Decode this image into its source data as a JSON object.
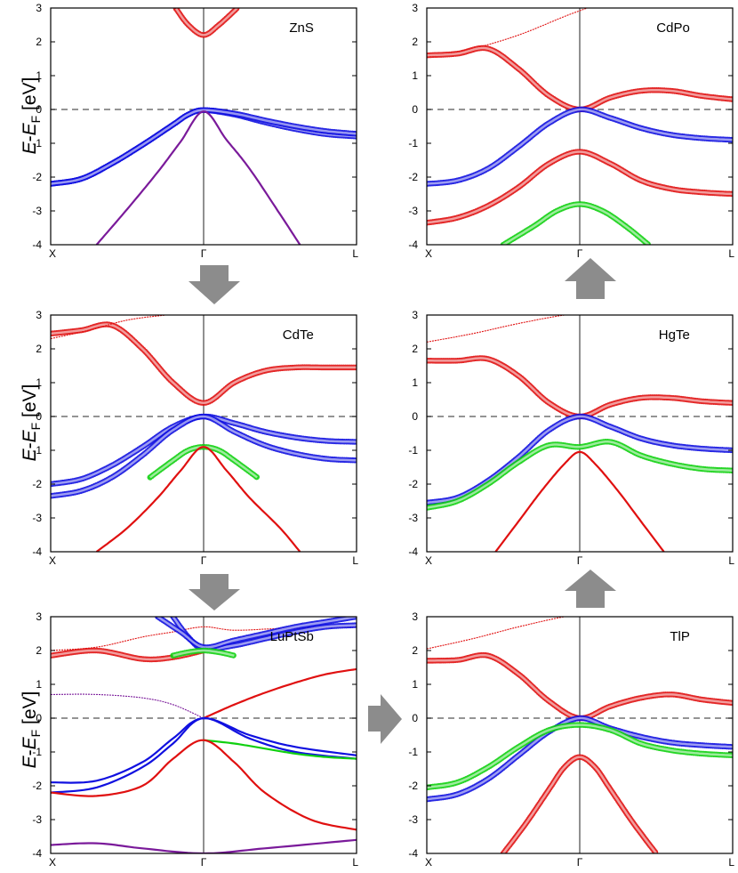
{
  "figure": {
    "ylabel": {
      "main": "E",
      "dash": "-",
      "e2": "E",
      "sub": "F",
      "unit": " [eV]"
    },
    "arrow_color": "#8c8c8c",
    "colors": {
      "red": "#e01010",
      "blue": "#1010e0",
      "green": "#10d010",
      "purple": "#7a1a9a",
      "fermi": "#555555",
      "axis": "#000000"
    }
  },
  "chart_data": [
    {
      "type": "line",
      "title": "ZnS",
      "x_ticks": [
        "X",
        "Γ",
        "L"
      ],
      "ylim": [
        -4,
        3
      ],
      "y_ticks": [
        -4,
        -3,
        -2,
        -1,
        0,
        1,
        2,
        3
      ],
      "fermi_level": 0,
      "series": [
        {
          "color": "red",
          "style": "circles",
          "x": [
            0.82,
            0.9,
            1.0,
            1.1,
            1.22
          ],
          "y": [
            2.98,
            2.5,
            2.2,
            2.5,
            3.0
          ]
        },
        {
          "color": "blue",
          "style": "circles",
          "x": [
            0,
            0.2,
            0.4,
            0.6,
            0.8,
            0.9,
            1.0,
            1.2,
            1.4,
            1.6,
            1.8,
            2.0
          ],
          "y": [
            -2.2,
            -2.05,
            -1.6,
            -1.05,
            -0.45,
            -0.15,
            -0.02,
            -0.15,
            -0.38,
            -0.58,
            -0.73,
            -0.8
          ]
        },
        {
          "color": "blue",
          "style": "circles",
          "x": [
            0,
            0.2,
            0.4,
            0.6,
            0.8,
            0.9,
            1.0,
            1.2,
            1.4,
            1.6,
            1.8,
            2.0
          ],
          "y": [
            -2.2,
            -2.05,
            -1.6,
            -1.05,
            -0.45,
            -0.15,
            -0.02,
            -0.12,
            -0.32,
            -0.5,
            -0.64,
            -0.72
          ]
        },
        {
          "color": "purple",
          "style": "line",
          "x": [
            0.3,
            0.5,
            0.7,
            0.85,
            1.0,
            1.15,
            1.3,
            1.5,
            1.63
          ],
          "y": [
            -4.0,
            -2.95,
            -1.85,
            -0.95,
            -0.06,
            -0.9,
            -1.75,
            -3.1,
            -4.0
          ]
        }
      ]
    },
    {
      "type": "line",
      "title": "CdPo",
      "x_ticks": [
        "X",
        "Γ",
        "L"
      ],
      "ylim": [
        -4,
        3
      ],
      "y_ticks": [
        -4,
        -3,
        -2,
        -1,
        0,
        1,
        2,
        3
      ],
      "fermi_level": 0,
      "series": [
        {
          "color": "red",
          "style": "thin",
          "x": [
            0,
            0.3,
            0.6,
            0.9,
            1.05
          ],
          "y": [
            1.55,
            1.8,
            2.2,
            2.75,
            3.0
          ]
        },
        {
          "color": "red",
          "style": "circles",
          "x": [
            0,
            0.2,
            0.4,
            0.6,
            0.8,
            1.0,
            1.2,
            1.4,
            1.6,
            1.8,
            2.0
          ],
          "y": [
            1.6,
            1.65,
            1.8,
            1.2,
            0.4,
            0.0,
            0.35,
            0.55,
            0.55,
            0.4,
            0.3
          ]
        },
        {
          "color": "blue",
          "style": "circles",
          "x": [
            0,
            0.2,
            0.4,
            0.6,
            0.8,
            1.0,
            1.2,
            1.4,
            1.6,
            1.8,
            2.0
          ],
          "y": [
            -2.2,
            -2.1,
            -1.75,
            -1.1,
            -0.4,
            0.0,
            -0.25,
            -0.55,
            -0.75,
            -0.85,
            -0.9
          ]
        },
        {
          "color": "red",
          "style": "circles",
          "x": [
            0,
            0.2,
            0.4,
            0.6,
            0.8,
            1.0,
            1.2,
            1.4,
            1.6,
            1.8,
            2.0
          ],
          "y": [
            -3.35,
            -3.2,
            -2.85,
            -2.3,
            -1.6,
            -1.25,
            -1.6,
            -2.1,
            -2.35,
            -2.45,
            -2.5
          ]
        },
        {
          "color": "green",
          "style": "circles",
          "x": [
            0.5,
            0.7,
            0.85,
            1.0,
            1.15,
            1.3,
            1.45
          ],
          "y": [
            -4.0,
            -3.45,
            -3.0,
            -2.8,
            -3.0,
            -3.45,
            -4.0
          ]
        }
      ]
    },
    {
      "type": "line",
      "title": "CdTe",
      "x_ticks": [
        "X",
        "Γ",
        "L"
      ],
      "ylim": [
        -4,
        3
      ],
      "y_ticks": [
        -4,
        -3,
        -2,
        -1,
        0,
        1,
        2,
        3
      ],
      "fermi_level": 0,
      "series": [
        {
          "color": "red",
          "style": "circles",
          "x": [
            0,
            0.2,
            0.4,
            0.6,
            0.8,
            1.0,
            1.2,
            1.4,
            1.6,
            1.8,
            2.0
          ],
          "y": [
            2.45,
            2.55,
            2.7,
            2.0,
            1.0,
            0.4,
            1.0,
            1.35,
            1.45,
            1.45,
            1.45
          ]
        },
        {
          "color": "red",
          "style": "thin",
          "x": [
            0,
            0.25,
            0.5,
            0.75
          ],
          "y": [
            2.3,
            2.55,
            2.85,
            3.0
          ]
        },
        {
          "color": "blue",
          "style": "circles",
          "x": [
            0,
            0.2,
            0.4,
            0.6,
            0.8,
            1.0,
            1.2,
            1.4,
            1.6,
            1.8,
            2.0
          ],
          "y": [
            -2.0,
            -1.85,
            -1.45,
            -0.9,
            -0.3,
            0.0,
            -0.2,
            -0.45,
            -0.62,
            -0.72,
            -0.75
          ]
        },
        {
          "color": "blue",
          "style": "circles",
          "x": [
            0,
            0.2,
            0.4,
            0.6,
            0.8,
            1.0,
            1.2,
            1.4,
            1.6,
            1.8,
            2.0
          ],
          "y": [
            -2.35,
            -2.2,
            -1.8,
            -1.15,
            -0.4,
            0.0,
            -0.45,
            -0.85,
            -1.1,
            -1.25,
            -1.3
          ]
        },
        {
          "color": "green",
          "style": "circles",
          "x": [
            0.65,
            0.8,
            0.9,
            1.0,
            1.1,
            1.2,
            1.35
          ],
          "y": [
            -1.8,
            -1.3,
            -1.0,
            -0.9,
            -1.0,
            -1.3,
            -1.8
          ]
        },
        {
          "color": "red",
          "style": "line",
          "x": [
            0.3,
            0.5,
            0.7,
            0.85,
            1.0,
            1.15,
            1.3,
            1.5,
            1.63
          ],
          "y": [
            -4.0,
            -3.3,
            -2.4,
            -1.6,
            -0.9,
            -1.6,
            -2.4,
            -3.3,
            -4.0
          ]
        }
      ]
    },
    {
      "type": "line",
      "title": "HgTe",
      "x_ticks": [
        "X",
        "Γ",
        "L"
      ],
      "ylim": [
        -4,
        3
      ],
      "y_ticks": [
        -4,
        -3,
        -2,
        -1,
        0,
        1,
        2,
        3
      ],
      "fermi_level": 0,
      "series": [
        {
          "color": "red",
          "style": "thin",
          "x": [
            0,
            0.3,
            0.6,
            0.9,
            1.0
          ],
          "y": [
            2.2,
            2.45,
            2.75,
            3.0,
            3.0
          ]
        },
        {
          "color": "red",
          "style": "circles",
          "x": [
            0,
            0.2,
            0.4,
            0.6,
            0.8,
            1.0,
            1.2,
            1.4,
            1.6,
            1.8,
            2.0
          ],
          "y": [
            1.65,
            1.65,
            1.7,
            1.2,
            0.4,
            0.0,
            0.35,
            0.55,
            0.55,
            0.45,
            0.4
          ]
        },
        {
          "color": "blue",
          "style": "circles",
          "x": [
            0,
            0.2,
            0.4,
            0.6,
            0.8,
            1.0,
            1.2,
            1.4,
            1.6,
            1.8,
            2.0
          ],
          "y": [
            -2.55,
            -2.4,
            -1.9,
            -1.2,
            -0.4,
            0.0,
            -0.3,
            -0.65,
            -0.85,
            -0.95,
            -1.0
          ]
        },
        {
          "color": "green",
          "style": "circles",
          "x": [
            0,
            0.2,
            0.4,
            0.6,
            0.8,
            1.0,
            1.2,
            1.4,
            1.6,
            1.8,
            2.0
          ],
          "y": [
            -2.7,
            -2.5,
            -2.0,
            -1.35,
            -0.85,
            -0.9,
            -0.75,
            -1.15,
            -1.4,
            -1.55,
            -1.6
          ]
        },
        {
          "color": "red",
          "style": "line",
          "x": [
            0.45,
            0.6,
            0.75,
            0.9,
            1.0,
            1.1,
            1.25,
            1.4,
            1.55
          ],
          "y": [
            -4.0,
            -3.1,
            -2.2,
            -1.4,
            -1.05,
            -1.4,
            -2.2,
            -3.1,
            -4.0
          ]
        }
      ]
    },
    {
      "type": "line",
      "title": "LuPtSb",
      "x_ticks": [
        "X",
        "Γ",
        "L"
      ],
      "ylim": [
        -4,
        3
      ],
      "y_ticks": [
        -4,
        -3,
        -2,
        -1,
        0,
        1,
        2,
        3
      ],
      "fermi_level": 0,
      "series": [
        {
          "color": "red",
          "style": "thin",
          "x": [
            0,
            0.3,
            0.6,
            0.8,
            1.0,
            1.2,
            1.5,
            2.0
          ],
          "y": [
            2.0,
            2.1,
            2.4,
            2.55,
            2.7,
            2.6,
            2.65,
            2.7
          ]
        },
        {
          "color": "red",
          "style": "circles",
          "x": [
            0,
            0.3,
            0.6,
            0.8,
            1.0
          ],
          "y": [
            1.85,
            2.0,
            1.75,
            1.8,
            2.0
          ]
        },
        {
          "color": "blue",
          "style": "circles",
          "x": [
            0.8,
            0.9,
            1.0,
            1.2,
            1.4,
            1.6,
            1.8,
            2.0
          ],
          "y": [
            3.0,
            2.4,
            2.05,
            2.15,
            2.35,
            2.55,
            2.7,
            2.75
          ]
        },
        {
          "color": "blue",
          "style": "circles",
          "x": [
            0.7,
            0.85,
            1.0,
            1.2,
            1.4,
            1.6,
            1.8,
            2.0
          ],
          "y": [
            3.0,
            2.55,
            2.1,
            2.3,
            2.5,
            2.7,
            2.85,
            3.0
          ]
        },
        {
          "color": "green",
          "style": "circles",
          "x": [
            0.8,
            0.9,
            1.0,
            1.1,
            1.2
          ],
          "y": [
            1.85,
            1.95,
            2.0,
            1.95,
            1.85
          ]
        },
        {
          "color": "purple",
          "style": "thin",
          "x": [
            0,
            0.3,
            0.6,
            0.8,
            1.0
          ],
          "y": [
            0.7,
            0.7,
            0.6,
            0.4,
            0.0
          ]
        },
        {
          "color": "red",
          "style": "line",
          "x": [
            1.0,
            1.2,
            1.4,
            1.6,
            1.8,
            2.0
          ],
          "y": [
            0.0,
            0.4,
            0.75,
            1.05,
            1.3,
            1.45
          ]
        },
        {
          "color": "blue",
          "style": "line",
          "x": [
            0,
            0.3,
            0.6,
            0.8,
            1.0,
            1.3,
            1.6,
            2.0
          ],
          "y": [
            -1.9,
            -1.85,
            -1.3,
            -0.6,
            0.0,
            -0.5,
            -0.85,
            -1.1
          ]
        },
        {
          "color": "blue",
          "style": "line",
          "x": [
            0,
            0.3,
            0.6,
            0.8,
            1.0,
            1.3,
            1.6,
            2.0
          ],
          "y": [
            -2.2,
            -2.05,
            -1.45,
            -0.75,
            0.0,
            -0.6,
            -1.0,
            -1.2
          ]
        },
        {
          "color": "green",
          "style": "line",
          "x": [
            1.0,
            1.2,
            1.4,
            1.6,
            1.8,
            2.0
          ],
          "y": [
            -0.65,
            -0.75,
            -0.9,
            -1.05,
            -1.15,
            -1.2
          ]
        },
        {
          "color": "red",
          "style": "line",
          "x": [
            0,
            0.3,
            0.6,
            0.8,
            1.0,
            1.2,
            1.4,
            1.7,
            2.0
          ],
          "y": [
            -2.2,
            -2.3,
            -2.0,
            -1.2,
            -0.65,
            -1.3,
            -2.2,
            -3.0,
            -3.3
          ]
        },
        {
          "color": "purple",
          "style": "line",
          "x": [
            0,
            0.3,
            0.6,
            1.0,
            1.4,
            2.0
          ],
          "y": [
            -3.75,
            -3.7,
            -3.85,
            -4.0,
            -3.85,
            -3.6
          ]
        }
      ]
    },
    {
      "type": "line",
      "title": "TlP",
      "x_ticks": [
        "X",
        "Γ",
        "L"
      ],
      "ylim": [
        -4,
        3
      ],
      "y_ticks": [
        -4,
        -3,
        -2,
        -1,
        0,
        1,
        2,
        3
      ],
      "fermi_level": 0,
      "series": [
        {
          "color": "red",
          "style": "thin",
          "x": [
            0,
            0.3,
            0.6,
            0.9,
            1.0
          ],
          "y": [
            2.05,
            2.35,
            2.7,
            3.0,
            3.0
          ]
        },
        {
          "color": "red",
          "style": "circles",
          "x": [
            0,
            0.2,
            0.4,
            0.6,
            0.8,
            1.0,
            1.2,
            1.4,
            1.6,
            1.8,
            2.0
          ],
          "y": [
            1.7,
            1.72,
            1.85,
            1.3,
            0.5,
            0.0,
            0.35,
            0.6,
            0.7,
            0.55,
            0.45
          ]
        },
        {
          "color": "blue",
          "style": "circles",
          "x": [
            0,
            0.2,
            0.4,
            0.6,
            0.8,
            1.0,
            1.2,
            1.4,
            1.6,
            1.8,
            2.0
          ],
          "y": [
            -2.4,
            -2.25,
            -1.8,
            -1.1,
            -0.4,
            0.0,
            -0.3,
            -0.55,
            -0.72,
            -0.8,
            -0.85
          ]
        },
        {
          "color": "green",
          "style": "circles",
          "x": [
            0,
            0.2,
            0.4,
            0.6,
            0.8,
            1.0,
            1.2,
            1.4,
            1.6,
            1.8,
            2.0
          ],
          "y": [
            -2.05,
            -1.9,
            -1.45,
            -0.85,
            -0.35,
            -0.2,
            -0.35,
            -0.75,
            -0.95,
            -1.05,
            -1.1
          ]
        },
        {
          "color": "red",
          "style": "circles",
          "x": [
            0.5,
            0.65,
            0.8,
            0.9,
            1.0,
            1.1,
            1.2,
            1.35,
            1.5
          ],
          "y": [
            -4.0,
            -3.1,
            -2.1,
            -1.45,
            -1.15,
            -1.45,
            -2.1,
            -3.1,
            -4.0
          ]
        }
      ]
    }
  ]
}
